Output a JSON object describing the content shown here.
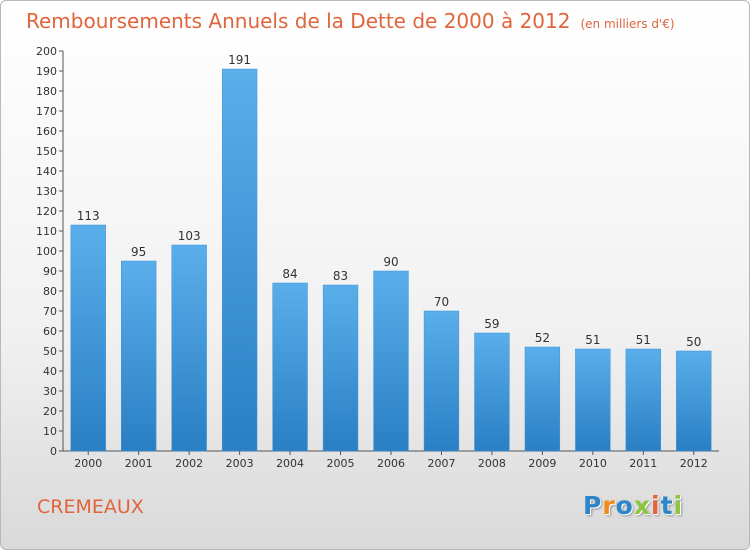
{
  "chart_data": {
    "type": "bar",
    "title": "Remboursements Annuels de la Dette de 2000 à 2012",
    "unit": "(en milliers d'€)",
    "categories": [
      "2000",
      "2001",
      "2002",
      "2003",
      "2004",
      "2005",
      "2006",
      "2007",
      "2008",
      "2009",
      "2010",
      "2011",
      "2012"
    ],
    "values": [
      113,
      95,
      103,
      191,
      84,
      83,
      90,
      70,
      59,
      52,
      51,
      51,
      50
    ],
    "ylim": [
      0,
      200
    ],
    "ytick_step": 10,
    "grid": false,
    "legend": "none",
    "colors": {
      "bar_light": "#5aaeea",
      "bar_dark": "#2a7fc4",
      "title": "#e0643c"
    }
  },
  "footer": {
    "commune": "CREMEAUX",
    "logo": {
      "letters": [
        "P",
        "r",
        "o",
        "x",
        "i",
        "t",
        "i"
      ],
      "colors": [
        "#2d86c9",
        "#f08a1c",
        "#2d86c9",
        "#8cc63f",
        "#e0643c",
        "#2d86c9",
        "#8cc63f"
      ]
    }
  }
}
